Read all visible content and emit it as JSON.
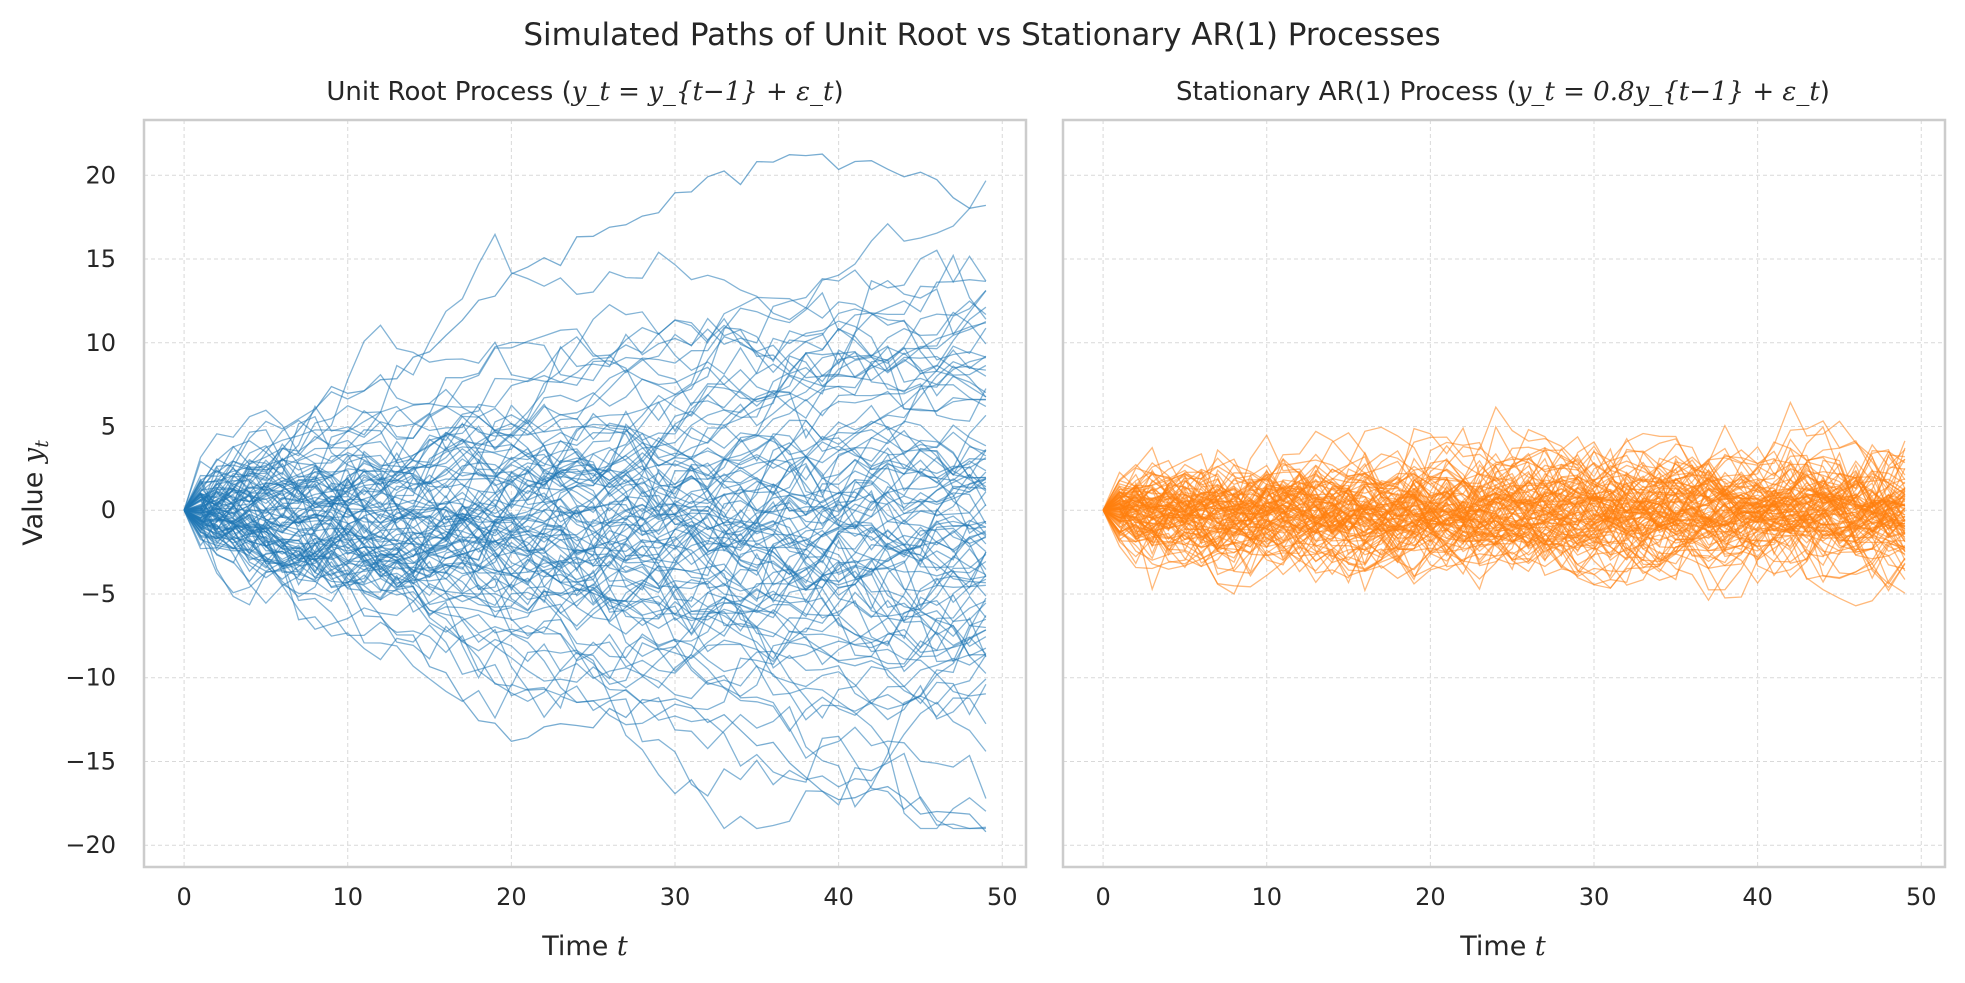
{
  "suptitle": "Simulated Paths of Unit Root vs Stationary AR(1) Processes",
  "chart_data": [
    {
      "type": "line",
      "title": "Unit Root Process (y_t = y_{t-1} + ε_t)",
      "title_parts": {
        "text": "Unit Root Process (",
        "formula": "y_t = y_{t−1} + ε_t",
        "close": ")"
      },
      "xlabel": "Time t",
      "xlabel_parts": {
        "text": "Time ",
        "var": "t"
      },
      "ylabel": "Value y_t",
      "ylabel_parts": {
        "text": "Value ",
        "var": "y",
        "sub": "t"
      },
      "x_ticks": [
        "0",
        "10",
        "20",
        "30",
        "40",
        "50"
      ],
      "y_ticks": [
        "−20",
        "−15",
        "−10",
        "−5",
        "0",
        "5",
        "10",
        "15",
        "20"
      ],
      "xlim": [
        -2.45,
        51.45
      ],
      "ylim": [
        -21.3,
        23.3
      ],
      "grid": true,
      "color": "#1f77b4",
      "n_paths": 100,
      "n_steps": 50,
      "phi": 1.0,
      "highlight_paths": [
        {
          "values_at_t": {
            "0": 0,
            "5": 3,
            "10": 7.5,
            "15": 9,
            "20": 14,
            "25": 16,
            "30": 19,
            "35": 20.5,
            "40": 20.7,
            "45": 19.5,
            "49": 18.2
          }
        },
        {
          "values_at_t": {
            "0": 0,
            "5": -2,
            "10": -5,
            "15": -9,
            "20": -13.6,
            "25": -12.5,
            "30": -11,
            "35": -14,
            "40": -17,
            "45": -17.5,
            "49": -19.2
          }
        }
      ]
    },
    {
      "type": "line",
      "title": "Stationary AR(1) Process (y_t = 0.8y_{t-1} + ε_t)",
      "title_parts": {
        "text": "Stationary AR(1) Process (",
        "formula": "y_t = 0.8y_{t−1} + ε_t",
        "close": ")"
      },
      "xlabel": "Time t",
      "xlabel_parts": {
        "text": "Time ",
        "var": "t"
      },
      "ylabel": "",
      "x_ticks": [
        "0",
        "10",
        "20",
        "30",
        "40",
        "50"
      ],
      "xlim": [
        -2.45,
        51.45
      ],
      "ylim": [
        -21.3,
        23.3
      ],
      "grid": true,
      "color": "#ff7f0e",
      "n_paths": 100,
      "n_steps": 50,
      "phi": 0.8,
      "typical_range": [
        -5.5,
        5.5
      ]
    }
  ]
}
